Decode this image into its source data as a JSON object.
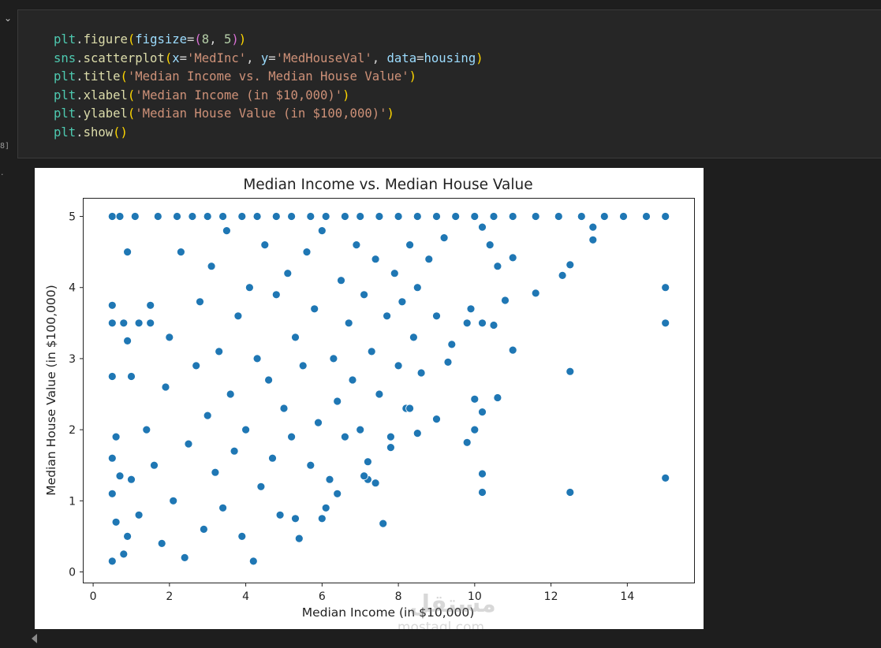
{
  "cell": {
    "exec_count": "8]",
    "output_marker": ".",
    "code_lines": [
      "plt.figure(figsize=(8, 5))",
      "sns.scatterplot(x='MedInc', y='MedHouseVal', data=housing)",
      "plt.title('Median Income vs. Median House Value')",
      "plt.xlabel('Median Income (in $10,000)')",
      "plt.ylabel('Median House Value (in $100,000)')",
      "plt.show()"
    ]
  },
  "watermark": {
    "arabic": "مستقل",
    "latin": "mostaql.com"
  },
  "colors": {
    "marker": "#1f77b4",
    "marker_edge": "#ffffff",
    "background": "#1e1e1e"
  },
  "chart_data": {
    "type": "scatter",
    "title": "Median Income vs. Median House Value",
    "xlabel": "Median Income (in $10,000)",
    "ylabel": "Median House Value (in $100,000)",
    "xlim": [
      -0.25,
      15.75
    ],
    "ylim": [
      -0.15,
      5.25
    ],
    "xticks": [
      0,
      2,
      4,
      6,
      8,
      10,
      12,
      14
    ],
    "yticks": [
      0,
      1,
      2,
      3,
      4,
      5
    ],
    "grid": false,
    "series": [
      {
        "points": [
          [
            0.5,
            5.0
          ],
          [
            0.7,
            5.0
          ],
          [
            1.1,
            5.0
          ],
          [
            1.7,
            5.0
          ],
          [
            2.2,
            5.0
          ],
          [
            2.6,
            5.0
          ],
          [
            3.0,
            5.0
          ],
          [
            3.4,
            5.0
          ],
          [
            3.9,
            5.0
          ],
          [
            4.3,
            5.0
          ],
          [
            4.8,
            5.0
          ],
          [
            5.2,
            5.0
          ],
          [
            5.7,
            5.0
          ],
          [
            6.1,
            5.0
          ],
          [
            6.6,
            5.0
          ],
          [
            7.0,
            5.0
          ],
          [
            7.5,
            5.0
          ],
          [
            8.0,
            5.0
          ],
          [
            8.5,
            5.0
          ],
          [
            9.0,
            5.0
          ],
          [
            9.5,
            5.0
          ],
          [
            10.0,
            5.0
          ],
          [
            10.5,
            5.0
          ],
          [
            11.0,
            5.0
          ],
          [
            11.6,
            5.0
          ],
          [
            12.2,
            5.0
          ],
          [
            12.8,
            5.0
          ],
          [
            13.4,
            5.0
          ],
          [
            13.9,
            5.0
          ],
          [
            14.5,
            5.0
          ],
          [
            15.0,
            5.0
          ],
          [
            0.5,
            3.5
          ],
          [
            0.8,
            3.5
          ],
          [
            1.2,
            3.5
          ],
          [
            1.5,
            3.5
          ],
          [
            0.5,
            3.75
          ],
          [
            1.5,
            3.75
          ],
          [
            0.9,
            4.5
          ],
          [
            0.5,
            2.75
          ],
          [
            1.0,
            2.75
          ],
          [
            0.9,
            3.25
          ],
          [
            0.5,
            1.6
          ],
          [
            0.5,
            1.1
          ],
          [
            0.6,
            0.7
          ],
          [
            0.5,
            0.15
          ],
          [
            0.8,
            0.25
          ],
          [
            0.6,
            1.9
          ],
          [
            0.7,
            1.35
          ],
          [
            0.9,
            0.5
          ],
          [
            1.0,
            1.3
          ],
          [
            1.2,
            0.8
          ],
          [
            1.4,
            2.0
          ],
          [
            1.6,
            1.5
          ],
          [
            1.8,
            0.4
          ],
          [
            1.9,
            2.6
          ],
          [
            2.0,
            3.3
          ],
          [
            2.1,
            1.0
          ],
          [
            2.3,
            4.5
          ],
          [
            2.4,
            0.2
          ],
          [
            2.5,
            1.8
          ],
          [
            2.7,
            2.9
          ],
          [
            2.8,
            3.8
          ],
          [
            2.9,
            0.6
          ],
          [
            3.0,
            2.2
          ],
          [
            3.1,
            4.3
          ],
          [
            3.2,
            1.4
          ],
          [
            3.3,
            3.1
          ],
          [
            3.4,
            0.9
          ],
          [
            3.5,
            4.8
          ],
          [
            3.6,
            2.5
          ],
          [
            3.7,
            1.7
          ],
          [
            3.8,
            3.6
          ],
          [
            3.9,
            0.5
          ],
          [
            4.0,
            2.0
          ],
          [
            4.1,
            4.0
          ],
          [
            4.2,
            0.15
          ],
          [
            4.3,
            3.0
          ],
          [
            4.4,
            1.2
          ],
          [
            4.5,
            4.6
          ],
          [
            4.6,
            2.7
          ],
          [
            4.7,
            1.6
          ],
          [
            4.8,
            3.9
          ],
          [
            4.9,
            0.8
          ],
          [
            5.0,
            2.3
          ],
          [
            5.1,
            4.2
          ],
          [
            5.2,
            1.9
          ],
          [
            5.3,
            3.3
          ],
          [
            5.4,
            0.47
          ],
          [
            5.5,
            2.9
          ],
          [
            5.6,
            4.5
          ],
          [
            5.7,
            1.5
          ],
          [
            5.8,
            3.7
          ],
          [
            5.9,
            2.1
          ],
          [
            6.0,
            4.8
          ],
          [
            6.2,
            1.3
          ],
          [
            6.3,
            3.0
          ],
          [
            6.4,
            2.4
          ],
          [
            6.5,
            4.1
          ],
          [
            6.6,
            1.9
          ],
          [
            6.7,
            3.5
          ],
          [
            6.8,
            2.7
          ],
          [
            6.9,
            4.6
          ],
          [
            7.0,
            2.0
          ],
          [
            7.1,
            3.9
          ],
          [
            7.2,
            1.3
          ],
          [
            7.3,
            3.1
          ],
          [
            7.4,
            4.4
          ],
          [
            7.5,
            2.5
          ],
          [
            7.6,
            0.68
          ],
          [
            7.7,
            3.6
          ],
          [
            7.8,
            1.9
          ],
          [
            7.9,
            4.2
          ],
          [
            8.0,
            2.9
          ],
          [
            8.1,
            3.8
          ],
          [
            8.2,
            2.3
          ],
          [
            8.3,
            4.6
          ],
          [
            8.4,
            3.3
          ],
          [
            8.5,
            4.0
          ],
          [
            8.6,
            2.8
          ],
          [
            8.8,
            4.4
          ],
          [
            9.0,
            3.6
          ],
          [
            9.2,
            4.7
          ],
          [
            9.4,
            3.2
          ],
          [
            5.3,
            0.75
          ],
          [
            6.1,
            0.9
          ],
          [
            6.4,
            1.1
          ],
          [
            6.0,
            0.75
          ],
          [
            7.1,
            1.35
          ],
          [
            7.4,
            1.25
          ],
          [
            7.2,
            1.55
          ],
          [
            7.8,
            1.75
          ],
          [
            8.5,
            1.95
          ],
          [
            8.3,
            2.3
          ],
          [
            9.0,
            2.15
          ],
          [
            9.3,
            2.95
          ],
          [
            9.8,
            1.82
          ],
          [
            10.0,
            2.0
          ],
          [
            10.2,
            2.25
          ],
          [
            10.0,
            2.43
          ],
          [
            10.2,
            1.38
          ],
          [
            10.2,
            1.12
          ],
          [
            10.6,
            2.45
          ],
          [
            11.0,
            3.12
          ],
          [
            11.6,
            3.92
          ],
          [
            12.3,
            4.17
          ],
          [
            12.5,
            4.32
          ],
          [
            12.5,
            2.82
          ],
          [
            12.5,
            1.12
          ],
          [
            10.2,
            3.5
          ],
          [
            10.5,
            3.47
          ],
          [
            9.8,
            3.5
          ],
          [
            9.9,
            3.7
          ],
          [
            10.8,
            3.82
          ],
          [
            11.0,
            4.42
          ],
          [
            13.1,
            4.67
          ],
          [
            13.1,
            4.85
          ],
          [
            10.2,
            4.85
          ],
          [
            10.4,
            4.6
          ],
          [
            10.6,
            4.3
          ],
          [
            15.0,
            4.0
          ],
          [
            15.0,
            3.5
          ],
          [
            15.0,
            1.32
          ]
        ]
      }
    ]
  }
}
